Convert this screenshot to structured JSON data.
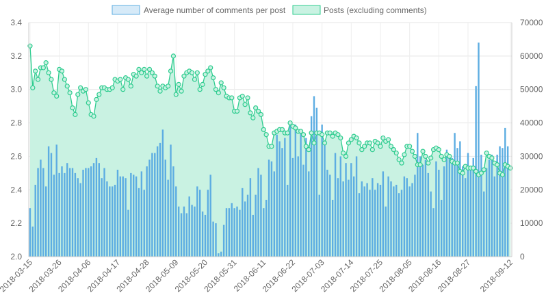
{
  "chart_data": {
    "type": "bar+line",
    "legend": {
      "position": "top",
      "items": [
        {
          "label": "Average number of comments per post",
          "fill": "#d6eaf8",
          "stroke": "#5dade2"
        },
        {
          "label": "Posts (excluding comments)",
          "fill": "#c9f2e2",
          "stroke": "#2ecc8f"
        }
      ]
    },
    "x_start": "2018-03-15",
    "x_tick_labels": [
      "2018-03-15",
      "2018-03-26",
      "2018-04-06",
      "2018-04-17",
      "2018-04-28",
      "2018-05-09",
      "2018-05-20",
      "2018-05-31",
      "2018-06-11",
      "2018-06-22",
      "2018-07-03",
      "2018-07-14",
      "2018-07-25",
      "2018-08-05",
      "2018-08-16",
      "2018-08-27",
      "2018-09-12"
    ],
    "left_axis": {
      "min": 2.0,
      "max": 3.4,
      "ticks": [
        "2.0",
        "2.2",
        "2.4",
        "2.6",
        "2.8",
        "3.0",
        "3.2",
        "3.4"
      ]
    },
    "right_axis": {
      "min": 0,
      "max": 70000,
      "ticks": [
        "0",
        "10000",
        "20000",
        "30000",
        "40000",
        "50000",
        "60000",
        "70000"
      ]
    },
    "grid": true,
    "bar_color": "#5dade2",
    "line_color": "#2ecc8f",
    "area_color": "#c9f2e2",
    "series": [
      {
        "name": "Average number of comments per post",
        "axis": "left",
        "values": [
          2.29,
          2.18,
          2.43,
          2.53,
          2.58,
          2.53,
          2.42,
          2.66,
          2.62,
          2.49,
          2.67,
          2.5,
          2.54,
          2.5,
          2.56,
          2.53,
          2.53,
          2.5,
          2.47,
          2.44,
          2.52,
          2.53,
          2.53,
          2.54,
          2.56,
          2.59,
          2.56,
          2.47,
          2.53,
          2.45,
          2.42,
          2.42,
          2.43,
          2.52,
          2.48,
          2.48,
          2.47,
          2.28,
          2.5,
          2.49,
          2.48,
          2.41,
          2.51,
          2.4,
          2.54,
          2.58,
          2.62,
          2.62,
          2.66,
          2.68,
          2.76,
          2.58,
          2.46,
          2.67,
          2.54,
          2.42,
          2.3,
          2.26,
          2.3,
          2.26,
          2.36,
          2.31,
          2.3,
          2.42,
          2.4,
          2.27,
          2.25,
          2.4,
          2.49,
          2.21,
          2.2,
          2.02,
          2.03,
          2.19,
          2.29,
          2.29,
          2.32,
          2.29,
          2.3,
          2.28,
          2.41,
          2.33,
          2.37,
          2.47,
          2.25,
          2.37,
          2.53,
          2.49,
          2.29,
          2.34,
          2.58,
          2.57,
          2.51,
          2.73,
          2.69,
          2.65,
          2.71,
          2.43,
          2.8,
          2.59,
          2.79,
          2.6,
          2.76,
          2.55,
          2.71,
          2.51,
          2.84,
          2.96,
          2.89,
          2.37,
          2.79,
          2.67,
          2.52,
          2.49,
          2.34,
          2.62,
          2.47,
          2.6,
          2.45,
          2.56,
          2.46,
          2.56,
          2.48,
          2.6,
          2.38,
          2.45,
          2.42,
          2.44,
          2.4,
          2.47,
          2.4,
          2.44,
          2.43,
          2.51,
          2.3,
          2.48,
          2.45,
          2.42,
          2.43,
          2.38,
          2.4,
          2.48,
          2.47,
          2.42,
          2.44,
          2.49,
          2.74,
          2.6,
          2.55,
          2.58,
          2.5,
          2.39,
          2.29,
          2.57,
          2.52,
          2.34,
          2.54,
          2.64,
          2.61,
          2.59,
          2.74,
          2.65,
          2.69,
          2.54,
          2.47,
          2.62,
          2.54,
          2.59,
          3.02,
          3.28,
          2.61,
          2.39,
          2.53,
          2.58,
          2.61,
          2.48,
          2.61,
          2.66,
          2.65,
          2.77,
          2.66
        ]
      },
      {
        "name": "Posts (excluding comments)",
        "axis": "right",
        "values": [
          63000,
          50500,
          55500,
          53000,
          56500,
          56500,
          58000,
          55000,
          53000,
          49000,
          48000,
          56000,
          55500,
          53000,
          51000,
          49000,
          44500,
          42500,
          48500,
          50500,
          49500,
          50000,
          46000,
          42500,
          42000,
          47000,
          48500,
          50500,
          50500,
          50000,
          50000,
          50500,
          53000,
          52500,
          53000,
          50000,
          53500,
          53000,
          51000,
          54500,
          54000,
          56000,
          55000,
          56000,
          54000,
          56000,
          55000,
          54000,
          51000,
          49500,
          51000,
          50500,
          51000,
          55500,
          60000,
          48500,
          51500,
          49500,
          54000,
          55000,
          55500,
          55000,
          53000,
          55000,
          50000,
          51500,
          54500,
          55500,
          56500,
          53500,
          50000,
          49000,
          52000,
          50500,
          48000,
          47500,
          47500,
          43500,
          43500,
          47500,
          48000,
          45500,
          47500,
          43000,
          41500,
          44500,
          43500,
          42500,
          38000,
          36500,
          33000,
          33000,
          37000,
          37500,
          38000,
          38000,
          37000,
          37000,
          40000,
          39000,
          38500,
          37500,
          37500,
          36500,
          33000,
          32000,
          37000,
          34000,
          37000,
          37000,
          36500,
          34000,
          37000,
          37000,
          36000,
          37000,
          36500,
          35500,
          31000,
          30000,
          34000,
          35000,
          36000,
          35500,
          34000,
          32000,
          33000,
          34000,
          34000,
          32000,
          34500,
          34000,
          33000,
          35500,
          34500,
          35000,
          33000,
          32000,
          31000,
          29000,
          28000,
          30500,
          33000,
          33000,
          31500,
          30000,
          27500,
          27500,
          31500,
          30000,
          28000,
          29500,
          32000,
          32500,
          32000,
          30000,
          29000,
          30500,
          30000,
          28500,
          28000,
          28000,
          25500,
          25000,
          27000,
          26500,
          26500,
          26500,
          25500,
          24500,
          25000,
          26000,
          31000,
          30000,
          29500,
          28000,
          27500,
          25000,
          24500,
          27500,
          27000,
          26500
        ]
      }
    ]
  }
}
